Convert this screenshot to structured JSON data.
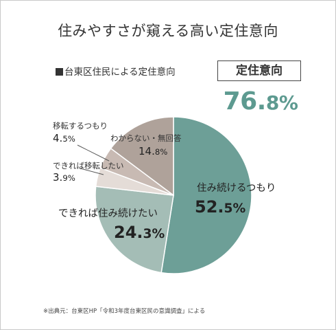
{
  "title": "住みやすさが窺える高い定住意向",
  "subtitle": "台東区住民による定住意向",
  "rate_label": "定住意向",
  "rate_value_main": "76.",
  "rate_value_small": "8%",
  "footnote": "※出典元：台東区HP「令和3年度台東区民の意識調査」による",
  "colors": {
    "title_text": "#333333",
    "accent": "#5d9a90",
    "slice_colors": [
      "#6d9f97",
      "#a4bdb6",
      "#e4dcd7",
      "#c8bab3",
      "#afa29a"
    ]
  },
  "chart_data": {
    "type": "pie",
    "title": "台東区住民による定住意向",
    "start": "12 o'clock, clockwise",
    "slices": [
      {
        "label": "住み続けるつもり",
        "value": 52.5,
        "text_main": "52.",
        "text_small": "5%"
      },
      {
        "label": "できれば住み続けたい",
        "value": 24.3,
        "text_main": "24.",
        "text_small": "3%"
      },
      {
        "label": "できれば移転したい",
        "value": 3.9,
        "text_main": "3.",
        "text_small": "9%"
      },
      {
        "label": "移転するつもり",
        "value": 4.5,
        "text_main": "4.",
        "text_small": "5%"
      },
      {
        "label": "わからない・無回答",
        "value": 14.8,
        "text_main": "14.",
        "text_small": "8%"
      }
    ]
  }
}
